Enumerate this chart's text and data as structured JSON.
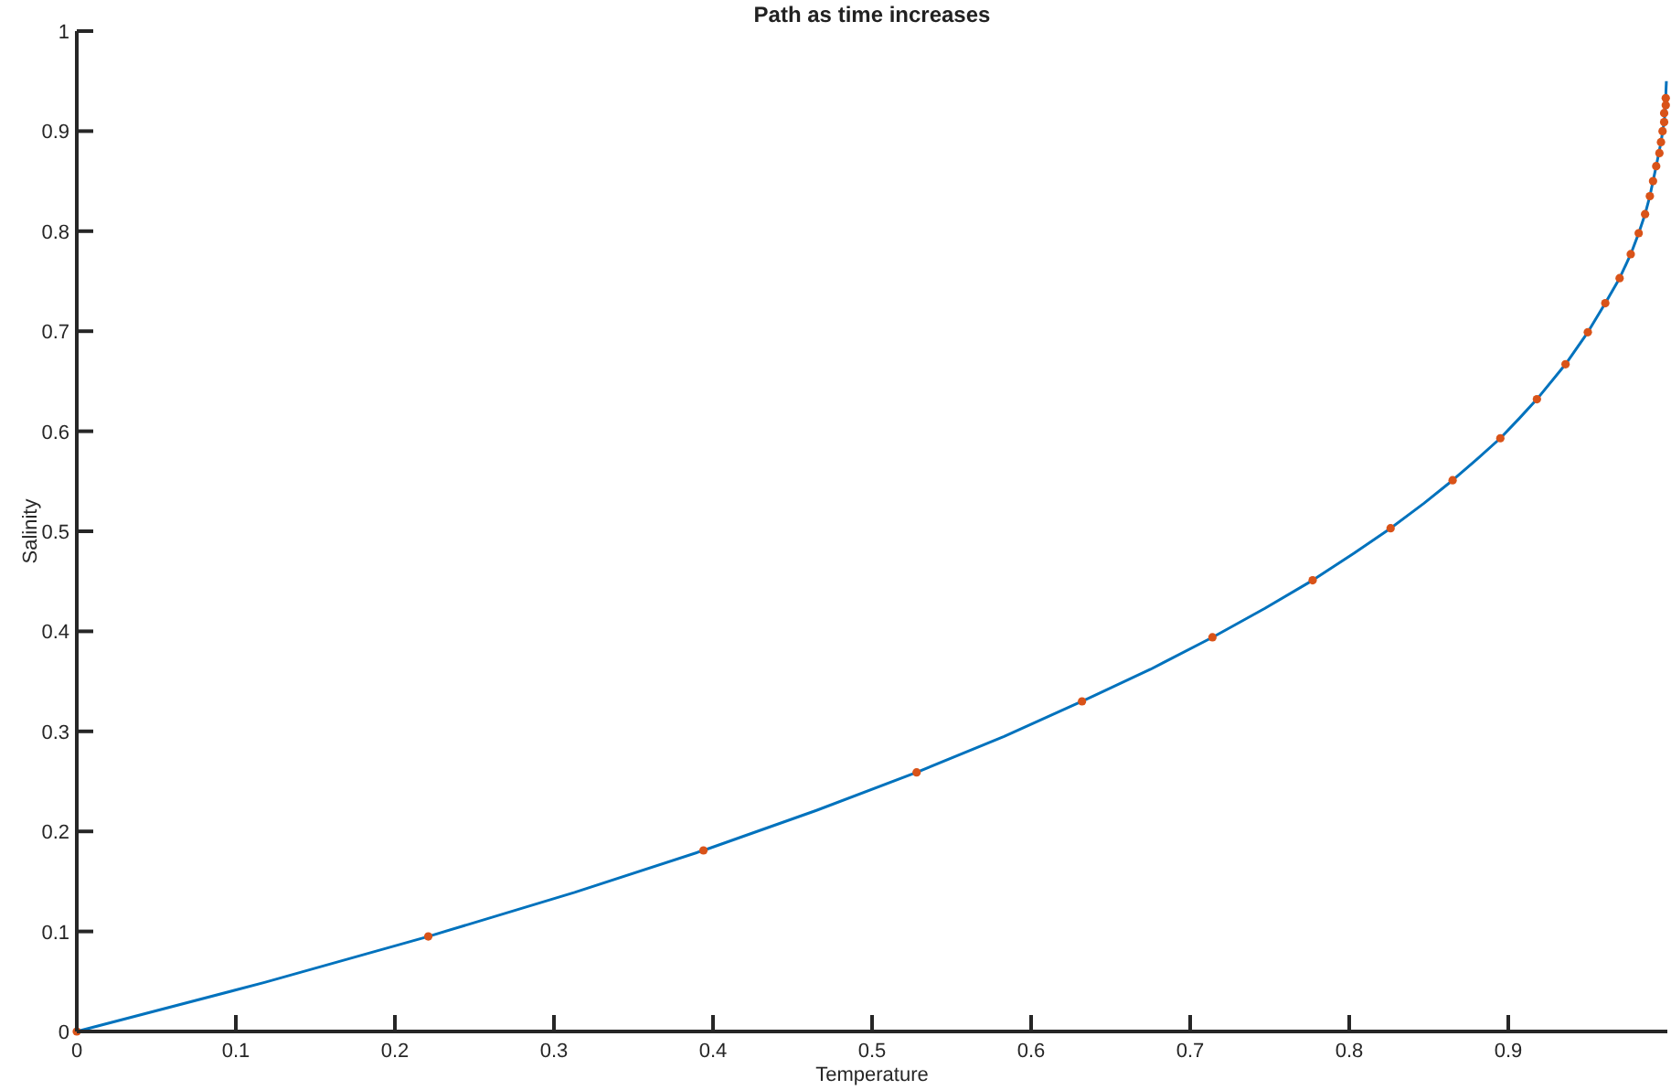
{
  "chart_data": {
    "type": "line",
    "title": "Path as time increases",
    "xlabel": "Temperature",
    "ylabel": "Salinity",
    "xlim": [
      0,
      1
    ],
    "ylim": [
      0,
      1
    ],
    "xticks": [
      0,
      0.1,
      0.2,
      0.3,
      0.4,
      0.5,
      0.6,
      0.7,
      0.8,
      0.9
    ],
    "yticks": [
      0,
      0.1,
      0.2,
      0.3,
      0.4,
      0.5,
      0.6,
      0.7,
      0.8,
      0.9,
      1
    ],
    "grid": false,
    "series": [
      {
        "color": "#0072bd",
        "marker": "none",
        "x": [
          0,
          0.118,
          0.221,
          0.313,
          0.394,
          0.465,
          0.528,
          0.583,
          0.632,
          0.675,
          0.714,
          0.747,
          0.777,
          0.803,
          0.826,
          0.847,
          0.865,
          0.881,
          0.895,
          0.907,
          0.918,
          0.936,
          0.95,
          0.961,
          0.97,
          0.977,
          0.982,
          0.986,
          0.989,
          0.991,
          0.993,
          0.996,
          0.998,
          0.999,
          0.9991,
          0.9994
        ],
        "values": [
          0,
          0.049,
          0.095,
          0.139,
          0.181,
          0.221,
          0.259,
          0.295,
          0.33,
          0.362,
          0.394,
          0.423,
          0.451,
          0.478,
          0.503,
          0.528,
          0.551,
          0.573,
          0.593,
          0.613,
          0.632,
          0.667,
          0.699,
          0.728,
          0.753,
          0.777,
          0.798,
          0.817,
          0.835,
          0.85,
          0.865,
          0.889,
          0.909,
          0.926,
          0.939,
          0.95
        ]
      },
      {
        "type": "scatter",
        "color": "#d95319",
        "marker": "circle",
        "x": [
          0,
          0.221,
          0.394,
          0.528,
          0.632,
          0.714,
          0.777,
          0.826,
          0.865,
          0.895,
          0.918,
          0.936,
          0.95,
          0.961,
          0.97,
          0.977,
          0.982,
          0.986,
          0.989,
          0.991,
          0.993,
          0.995,
          0.996,
          0.997,
          0.998,
          0.998,
          0.999,
          0.999
        ],
        "values": [
          0,
          0.095,
          0.181,
          0.259,
          0.33,
          0.394,
          0.451,
          0.503,
          0.551,
          0.593,
          0.632,
          0.667,
          0.699,
          0.728,
          0.753,
          0.777,
          0.798,
          0.817,
          0.835,
          0.85,
          0.865,
          0.878,
          0.889,
          0.9,
          0.909,
          0.918,
          0.926,
          0.933
        ]
      }
    ]
  }
}
